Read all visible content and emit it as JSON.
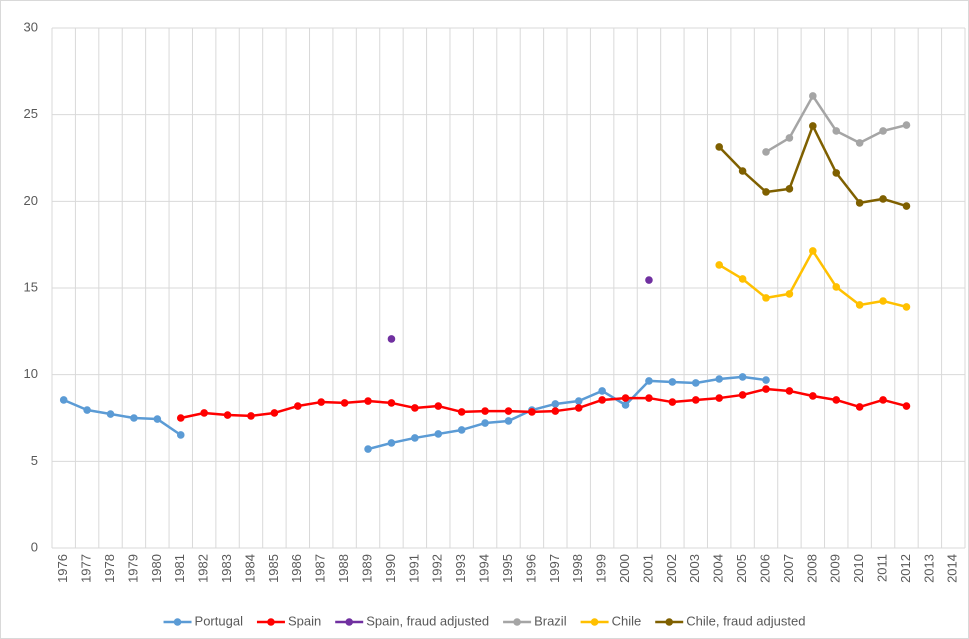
{
  "chart_data": {
    "type": "line",
    "categories": [
      "1976",
      "1977",
      "1978",
      "1979",
      "1980",
      "1981",
      "1982",
      "1983",
      "1984",
      "1985",
      "1986",
      "1987",
      "1988",
      "1989",
      "1990",
      "1991",
      "1992",
      "1993",
      "1994",
      "1995",
      "1996",
      "1997",
      "1998",
      "1999",
      "2000",
      "2001",
      "2002",
      "2003",
      "2004",
      "2005",
      "2006",
      "2007",
      "2008",
      "2009",
      "2010",
      "2011",
      "2012",
      "2013",
      "2014"
    ],
    "series": [
      {
        "name": "Portugal",
        "color": "#5b9bd5",
        "values": [
          8.54,
          7.96,
          7.73,
          7.5,
          7.44,
          6.52,
          null,
          null,
          null,
          null,
          null,
          null,
          null,
          5.71,
          6.06,
          6.35,
          6.58,
          6.81,
          7.21,
          7.33,
          7.96,
          8.31,
          8.48,
          9.06,
          8.25,
          9.64,
          9.58,
          9.52,
          9.75,
          9.87,
          9.69,
          null,
          null,
          null,
          null,
          null,
          null,
          null,
          null
        ]
      },
      {
        "name": "Spain",
        "color": "#ff0000",
        "values": [
          null,
          null,
          null,
          null,
          null,
          7.5,
          7.79,
          7.67,
          7.62,
          7.79,
          8.19,
          8.42,
          8.37,
          8.48,
          8.37,
          8.08,
          8.19,
          7.85,
          7.9,
          7.9,
          7.85,
          7.9,
          8.08,
          8.54,
          8.65,
          8.65,
          8.42,
          8.54,
          8.65,
          8.83,
          9.17,
          9.06,
          8.77,
          8.54,
          8.14,
          8.54,
          8.19,
          null,
          null
        ]
      },
      {
        "name": "Spain, fraud adjusted",
        "color": "#7030a0",
        "values": [
          null,
          null,
          null,
          null,
          null,
          null,
          null,
          null,
          null,
          null,
          null,
          null,
          null,
          null,
          12.06,
          null,
          null,
          null,
          null,
          null,
          null,
          null,
          null,
          null,
          null,
          15.46,
          null,
          null,
          null,
          null,
          null,
          null,
          null,
          null,
          null,
          null,
          null,
          null,
          null
        ]
      },
      {
        "name": "Brazil",
        "color": "#a5a5a5",
        "values": [
          null,
          null,
          null,
          null,
          null,
          null,
          null,
          null,
          null,
          null,
          null,
          null,
          null,
          null,
          null,
          null,
          null,
          null,
          null,
          null,
          null,
          null,
          null,
          null,
          null,
          null,
          null,
          null,
          null,
          null,
          22.85,
          23.66,
          26.08,
          24.06,
          23.37,
          24.06,
          24.4,
          null,
          null
        ]
      },
      {
        "name": "Chile",
        "color": "#ffc000",
        "values": [
          null,
          null,
          null,
          null,
          null,
          null,
          null,
          null,
          null,
          null,
          null,
          null,
          null,
          null,
          null,
          null,
          null,
          null,
          null,
          null,
          null,
          null,
          null,
          null,
          null,
          null,
          null,
          null,
          16.33,
          15.52,
          14.43,
          14.66,
          17.14,
          15.06,
          14.02,
          14.25,
          13.91,
          null,
          null
        ]
      },
      {
        "name": "Chile, fraud adjusted",
        "color": "#7f6000",
        "values": [
          null,
          null,
          null,
          null,
          null,
          null,
          null,
          null,
          null,
          null,
          null,
          null,
          null,
          null,
          null,
          null,
          null,
          null,
          null,
          null,
          null,
          null,
          null,
          null,
          null,
          null,
          null,
          null,
          23.14,
          21.75,
          20.54,
          20.72,
          24.35,
          21.64,
          19.91,
          20.14,
          19.73,
          null,
          null
        ]
      }
    ],
    "ylim": [
      0,
      30
    ],
    "yticks": [
      0,
      5,
      10,
      15,
      20,
      25,
      30
    ],
    "grid": true
  }
}
